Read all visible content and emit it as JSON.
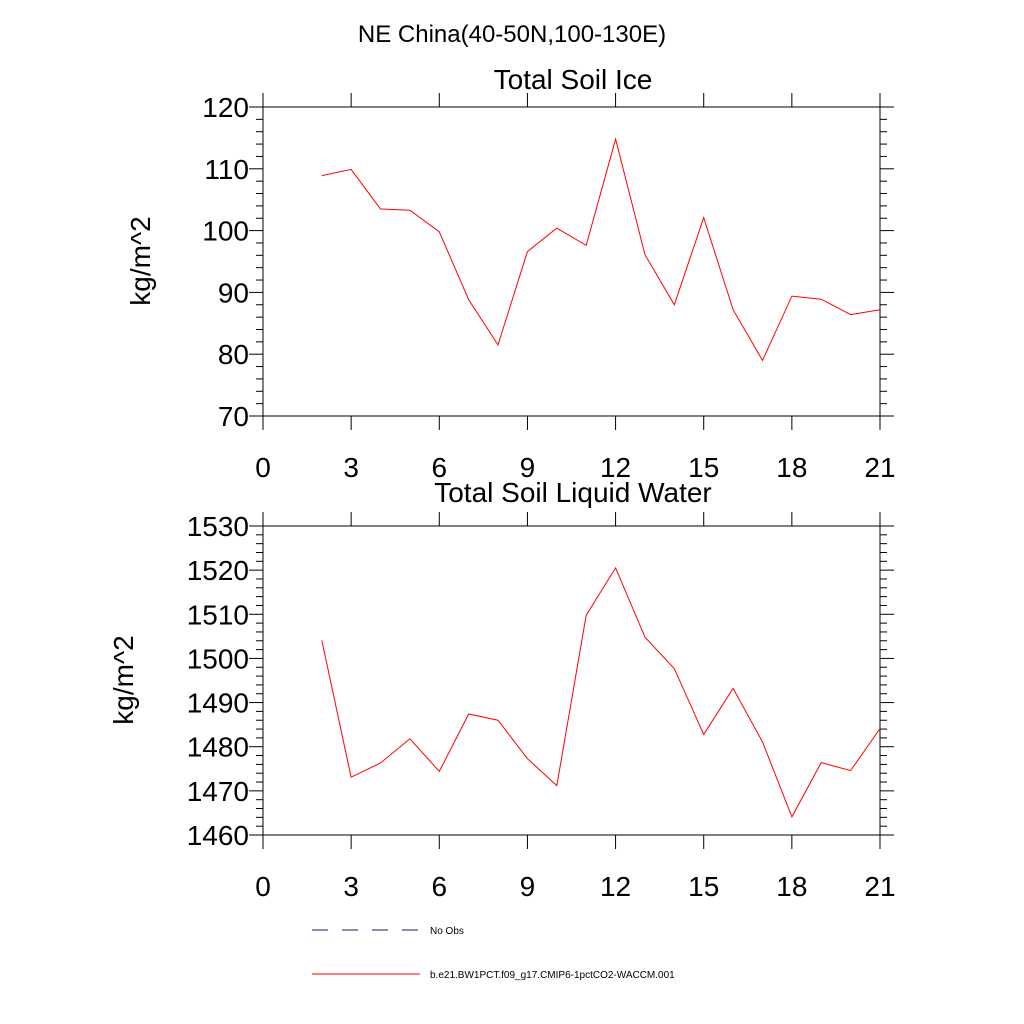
{
  "suptitle": "NE China(40-50N,100-130E)",
  "legend": [
    {
      "label": "No Obs",
      "style": "dashed",
      "color": "#1a1a66"
    },
    {
      "label": "b.e21.BW1PCT.f09_g17.CMIP6-1pctCO2-WACCM.001",
      "style": "solid",
      "color": "#ff0000"
    }
  ],
  "chart_data": [
    {
      "type": "line",
      "title": "Total Soil Ice",
      "xlabel": "",
      "ylabel": "kg/m^2",
      "xlim": [
        0,
        21
      ],
      "ylim": [
        70,
        120
      ],
      "xticks": [
        0,
        3,
        6,
        9,
        12,
        15,
        18,
        21
      ],
      "yticks": [
        70,
        80,
        90,
        100,
        110,
        120
      ],
      "x": [
        2,
        3,
        4,
        5,
        6,
        7,
        8,
        9,
        10,
        11,
        12,
        13,
        14,
        15,
        16,
        17,
        18,
        19,
        20,
        21
      ],
      "series": [
        {
          "color": "#ff0000",
          "values": [
            108.9,
            109.9,
            103.5,
            103.3,
            99.8,
            88.8,
            81.5,
            96.6,
            100.4,
            97.6,
            114.8,
            96.1,
            88.0,
            102.1,
            87.2,
            79.0,
            89.4,
            88.9,
            86.4,
            87.2
          ]
        }
      ]
    },
    {
      "type": "line",
      "title": "Total Soil Liquid Water",
      "xlabel": "",
      "ylabel": "kg/m^2",
      "xlim": [
        0,
        21
      ],
      "ylim": [
        1460,
        1530
      ],
      "xticks": [
        0,
        3,
        6,
        9,
        12,
        15,
        18,
        21
      ],
      "yticks": [
        1460,
        1470,
        1480,
        1490,
        1500,
        1510,
        1520,
        1530
      ],
      "x": [
        2,
        3,
        4,
        5,
        6,
        7,
        8,
        9,
        10,
        11,
        12,
        13,
        14,
        15,
        16,
        17,
        18,
        19,
        20,
        21
      ],
      "series": [
        {
          "color": "#ff0000",
          "values": [
            1504.1,
            1473.1,
            1476.3,
            1481.8,
            1474.4,
            1487.4,
            1486.0,
            1477.3,
            1471.2,
            1509.8,
            1520.5,
            1504.8,
            1497.7,
            1482.8,
            1493.2,
            1481.1,
            1464.1,
            1476.4,
            1474.6,
            1484.1
          ]
        }
      ]
    }
  ]
}
